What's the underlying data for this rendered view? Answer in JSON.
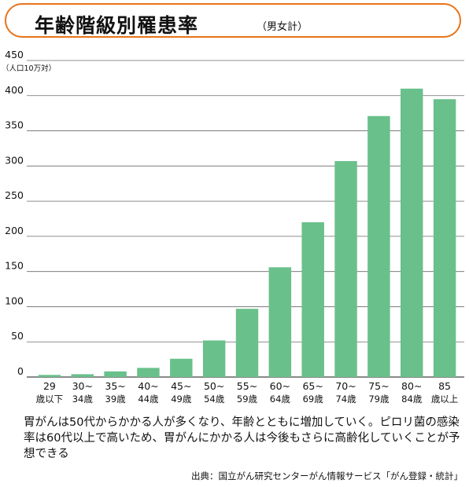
{
  "header": {
    "title": "年齢階級別罹患率",
    "subtitle": "（男女計）"
  },
  "chart_data": {
    "type": "bar",
    "ylabel": "（人口10万対）",
    "ylim": [
      0,
      450
    ],
    "yticks": [
      "0",
      "50",
      "100",
      "150",
      "200",
      "250",
      "300",
      "350",
      "400",
      "450"
    ],
    "grid": true,
    "bar_color": "#69c08b",
    "categories": [
      {
        "line1": "29",
        "line2": "歳以下"
      },
      {
        "line1": "30~",
        "line2": "34歳"
      },
      {
        "line1": "35~",
        "line2": "39歳"
      },
      {
        "line1": "40~",
        "line2": "44歳"
      },
      {
        "line1": "45~",
        "line2": "49歳"
      },
      {
        "line1": "50~",
        "line2": "54歳"
      },
      {
        "line1": "55~",
        "line2": "59歳"
      },
      {
        "line1": "60~",
        "line2": "64歳"
      },
      {
        "line1": "65~",
        "line2": "69歳"
      },
      {
        "line1": "70~",
        "line2": "74歳"
      },
      {
        "line1": "75~",
        "line2": "79歳"
      },
      {
        "line1": "80~",
        "line2": "84歳"
      },
      {
        "line1": "85",
        "line2": "歳以上"
      }
    ],
    "values": [
      3,
      4,
      8,
      13,
      26,
      52,
      97,
      156,
      220,
      307,
      371,
      410,
      395
    ]
  },
  "caption": "胃がんは50代からかかる人が多くなり、年齢とともに増加していく。ピロリ菌の感染率は60代以上で高いため、胃がんにかかる人は今後もさらに高齢化していくことが予想できる",
  "source": "出典：国立がん研究センターがん情報サービス「がん登録・統計」"
}
